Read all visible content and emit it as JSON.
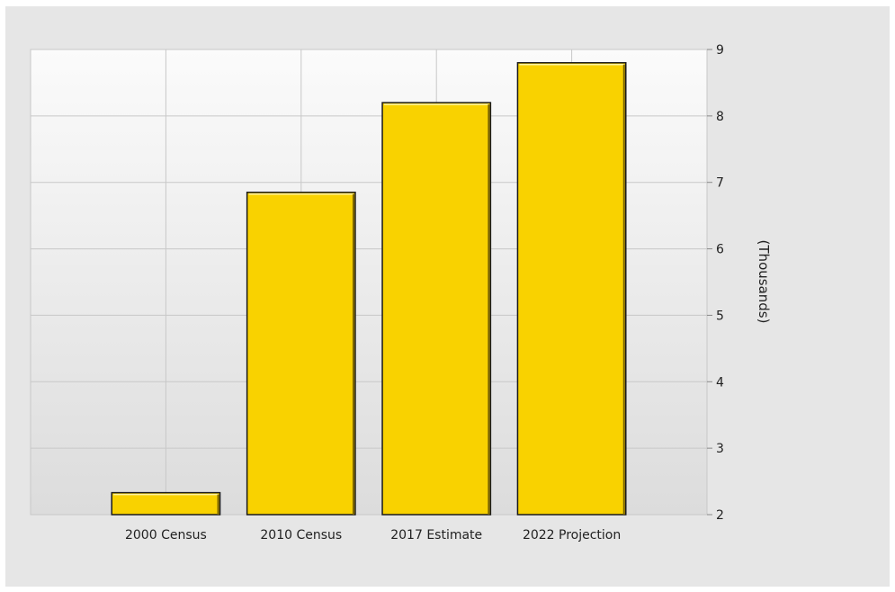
{
  "chart_data": {
    "type": "bar",
    "categories": [
      "2000 Census",
      "2010 Census",
      "2017 Estimate",
      "2022 Projection"
    ],
    "values": [
      2.33,
      6.85,
      8.2,
      8.8
    ],
    "title": "",
    "xlabel": "",
    "ylabel": "(Thousands)",
    "ylim": [
      2,
      9
    ],
    "yticks": [
      "2",
      "3",
      "4",
      "5",
      "6",
      "7",
      "8",
      "9"
    ],
    "y_axis_side": "right",
    "grid": true,
    "legend": "none",
    "colors": {
      "bar_fill": "#f9d200",
      "bar_edge": "#1a1a1a",
      "grid": "#c8c8c8",
      "plot_top": "#fbfbfb",
      "plot_bottom": "#dcdcdc",
      "frame_bg": "#e6e6e6"
    }
  }
}
